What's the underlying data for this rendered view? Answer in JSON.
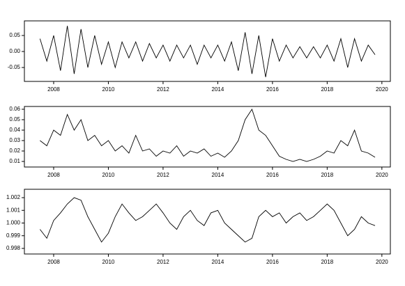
{
  "chart_data": [
    {
      "type": "line",
      "color": "#000000",
      "x": [
        2007.5,
        2007.75,
        2008,
        2008.25,
        2008.5,
        2008.75,
        2009,
        2009.25,
        2009.5,
        2009.75,
        2010,
        2010.25,
        2010.5,
        2010.75,
        2011,
        2011.25,
        2011.5,
        2011.75,
        2012,
        2012.25,
        2012.5,
        2012.75,
        2013,
        2013.25,
        2013.5,
        2013.75,
        2014,
        2014.25,
        2014.5,
        2014.75,
        2015,
        2015.25,
        2015.5,
        2015.75,
        2016,
        2016.25,
        2016.5,
        2016.75,
        2017,
        2017.25,
        2017.5,
        2017.75,
        2018,
        2018.25,
        2018.5,
        2018.75,
        2019,
        2019.25,
        2019.5,
        2019.75
      ],
      "values": [
        0.04,
        -0.03,
        0.05,
        -0.06,
        0.08,
        -0.07,
        0.07,
        -0.05,
        0.05,
        -0.04,
        0.03,
        -0.05,
        0.03,
        -0.02,
        0.03,
        -0.03,
        0.025,
        -0.02,
        0.02,
        -0.03,
        0.02,
        -0.02,
        0.02,
        -0.04,
        0.02,
        -0.02,
        0.02,
        -0.03,
        0.03,
        -0.06,
        0.06,
        -0.07,
        0.05,
        -0.08,
        0.04,
        -0.03,
        0.02,
        -0.02,
        0.015,
        -0.02,
        0.015,
        -0.02,
        0.02,
        -0.03,
        0.04,
        -0.05,
        0.04,
        -0.03,
        0.02,
        -0.01
      ],
      "xlim": [
        2006.93,
        2020.31
      ],
      "xticks": [
        2008,
        2010,
        2012,
        2014,
        2016,
        2018,
        2020
      ],
      "ylim": [
        -0.0935,
        0.0957
      ],
      "yticks": [
        -0.05,
        {
          "value": 0,
          "label": "0.00"
        },
        0.05
      ]
    },
    {
      "type": "line",
      "color": "#000000",
      "x": [
        2007.5,
        2007.75,
        2008,
        2008.25,
        2008.5,
        2008.75,
        2009,
        2009.25,
        2009.5,
        2009.75,
        2010,
        2010.25,
        2010.5,
        2010.75,
        2011,
        2011.25,
        2011.5,
        2011.75,
        2012,
        2012.25,
        2012.5,
        2012.75,
        2013,
        2013.25,
        2013.5,
        2013.75,
        2014,
        2014.25,
        2014.5,
        2014.75,
        2015,
        2015.25,
        2015.5,
        2015.75,
        2016,
        2016.25,
        2016.5,
        2016.75,
        2017,
        2017.25,
        2017.5,
        2017.75,
        2018,
        2018.25,
        2018.5,
        2018.75,
        2019,
        2019.25,
        2019.5,
        2019.75
      ],
      "values": [
        0.03,
        0.025,
        0.04,
        0.035,
        0.055,
        0.04,
        0.05,
        0.03,
        0.035,
        0.025,
        0.03,
        0.02,
        0.025,
        0.018,
        0.035,
        0.02,
        0.022,
        0.015,
        0.02,
        0.018,
        0.025,
        0.015,
        0.02,
        0.018,
        0.022,
        0.015,
        0.018,
        0.014,
        0.02,
        0.03,
        0.05,
        0.06,
        0.04,
        0.035,
        0.025,
        0.015,
        0.012,
        0.01,
        0.012,
        0.01,
        0.012,
        0.015,
        0.02,
        0.018,
        0.03,
        0.025,
        0.04,
        0.02,
        0.018,
        0.014
      ],
      "xlim": [
        2006.93,
        2020.31
      ],
      "xticks": [
        2008,
        2010,
        2012,
        2014,
        2016,
        2018,
        2020
      ],
      "ylim": [
        0.00467,
        0.06267
      ],
      "yticks": [
        0.01,
        0.02,
        0.03,
        0.04,
        0.05,
        0.06
      ]
    },
    {
      "type": "line",
      "color": "#000000",
      "x": [
        2007.5,
        2007.75,
        2008,
        2008.25,
        2008.5,
        2008.75,
        2009,
        2009.25,
        2009.5,
        2009.75,
        2010,
        2010.25,
        2010.5,
        2010.75,
        2011,
        2011.25,
        2011.5,
        2011.75,
        2012,
        2012.25,
        2012.5,
        2012.75,
        2013,
        2013.25,
        2013.5,
        2013.75,
        2014,
        2014.25,
        2014.5,
        2014.75,
        2015,
        2015.25,
        2015.5,
        2015.75,
        2016,
        2016.25,
        2016.5,
        2016.75,
        2017,
        2017.25,
        2017.5,
        2017.75,
        2018,
        2018.25,
        2018.5,
        2018.75,
        2019,
        2019.25,
        2019.5,
        2019.75
      ],
      "values": [
        0.9995,
        0.9988,
        1.0002,
        1.0008,
        1.0015,
        1.002,
        1.0018,
        1.0005,
        0.9995,
        0.9985,
        0.9992,
        1.0005,
        1.0015,
        1.0008,
        1.0002,
        1.0005,
        1.001,
        1.0015,
        1.0008,
        1.0,
        0.9995,
        1.0005,
        1.001,
        1.0002,
        0.9998,
        1.0008,
        1.001,
        1.0,
        0.9995,
        0.999,
        0.9985,
        0.9988,
        1.0005,
        1.001,
        1.0005,
        1.0008,
        1.0,
        1.0005,
        1.0008,
        1.0002,
        1.0005,
        1.001,
        1.0015,
        1.001,
        1.0,
        0.999,
        0.9995,
        1.0005,
        1.0,
        0.9998
      ],
      "xlim": [
        2006.93,
        2020.31
      ],
      "xticks": [
        2008,
        2010,
        2012,
        2014,
        2016,
        2018,
        2020
      ],
      "ylim": [
        0.99756,
        1.00266
      ],
      "yticks": [
        0.998,
        0.999,
        {
          "value": 1,
          "label": "1.000"
        },
        1.001,
        1.002
      ]
    }
  ]
}
